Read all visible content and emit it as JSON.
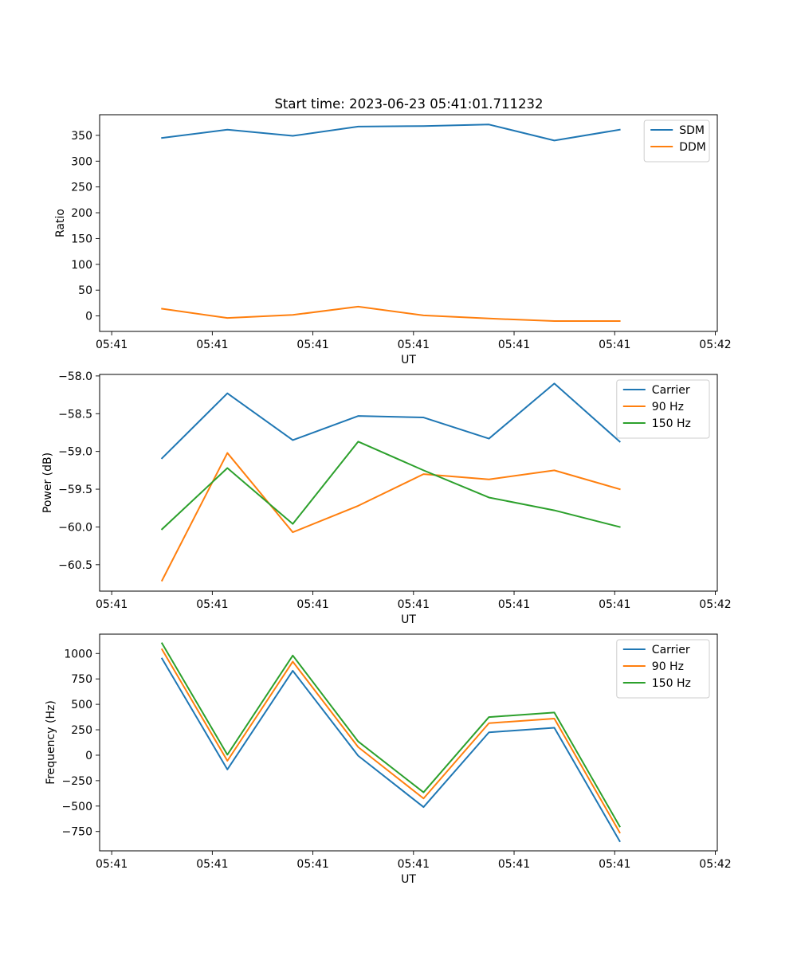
{
  "title": "Start time: 2023-06-23 05:41:01.711232",
  "colors": {
    "c0": "#1f77b4",
    "c1": "#ff7f0e",
    "c2": "#2ca02c"
  },
  "chart_data": [
    {
      "type": "line",
      "title": "Start time: 2023-06-23 05:41:01.711232",
      "xlabel": "UT",
      "ylabel": "Ratio",
      "x_tick_labels": [
        "05:41",
        "05:41",
        "05:41",
        "05:41",
        "05:41",
        "05:41",
        "05:42"
      ],
      "x_tick_values": [
        0,
        1,
        2,
        3,
        4,
        5,
        6
      ],
      "xlim": [
        -0.12,
        6.02
      ],
      "x": [
        0.5,
        1.15,
        1.8,
        2.45,
        3.1,
        3.75,
        4.4,
        5.05
      ],
      "ylim": [
        -30,
        390
      ],
      "y_ticks": [
        0,
        50,
        100,
        150,
        200,
        250,
        300,
        350
      ],
      "legend": "top-right",
      "series": [
        {
          "name": "SDM",
          "color": "#1f77b4",
          "values": [
            345,
            361,
            349,
            367,
            368,
            371,
            340,
            361
          ]
        },
        {
          "name": "DDM",
          "color": "#ff7f0e",
          "values": [
            14,
            -4,
            2,
            18,
            1,
            -5,
            -10,
            -10
          ]
        }
      ]
    },
    {
      "type": "line",
      "xlabel": "UT",
      "ylabel": "Power (dB)",
      "x_tick_labels": [
        "05:41",
        "05:41",
        "05:41",
        "05:41",
        "05:41",
        "05:41",
        "05:42"
      ],
      "x_tick_values": [
        0,
        1,
        2,
        3,
        4,
        5,
        6
      ],
      "xlim": [
        -0.12,
        6.02
      ],
      "x": [
        0.5,
        1.15,
        1.8,
        2.45,
        3.1,
        3.75,
        4.4,
        5.05
      ],
      "ylim": [
        -60.85,
        -57.98
      ],
      "y_ticks": [
        -60.5,
        -60.0,
        -59.5,
        -59.0,
        -58.5,
        -58.0
      ],
      "y_tick_labels": [
        "−60.5",
        "−60.0",
        "−59.5",
        "−59.0",
        "−58.5",
        "−58.0"
      ],
      "legend": "top-right",
      "series": [
        {
          "name": "Carrier",
          "color": "#1f77b4",
          "values": [
            -59.09,
            -58.23,
            -58.85,
            -58.53,
            -58.55,
            -58.83,
            -58.1,
            -58.87
          ]
        },
        {
          "name": "90 Hz",
          "color": "#ff7f0e",
          "values": [
            -60.71,
            -59.02,
            -60.07,
            -59.72,
            -59.3,
            -59.37,
            -59.25,
            -59.5
          ]
        },
        {
          "name": "150 Hz",
          "color": "#2ca02c",
          "values": [
            -60.03,
            -59.22,
            -59.96,
            -58.87,
            -59.25,
            -59.61,
            -59.78,
            -60.0
          ]
        }
      ]
    },
    {
      "type": "line",
      "xlabel": "UT",
      "ylabel": "Frequency (Hz)",
      "x_tick_labels": [
        "05:41",
        "05:41",
        "05:41",
        "05:41",
        "05:41",
        "05:41",
        "05:42"
      ],
      "x_tick_values": [
        0,
        1,
        2,
        3,
        4,
        5,
        6
      ],
      "xlim": [
        -0.12,
        6.02
      ],
      "x": [
        0.5,
        1.15,
        1.8,
        2.45,
        3.1,
        3.75,
        4.4,
        5.05
      ],
      "ylim": [
        -940,
        1190
      ],
      "y_ticks": [
        -750,
        -500,
        -250,
        0,
        250,
        500,
        750,
        1000
      ],
      "y_tick_labels": [
        "−750",
        "−500",
        "−250",
        "0",
        "250",
        "500",
        "750",
        "1000"
      ],
      "legend": "top-right",
      "series": [
        {
          "name": "Carrier",
          "color": "#1f77b4",
          "values": [
            950,
            -140,
            830,
            -5,
            -510,
            225,
            270,
            -845
          ]
        },
        {
          "name": "90 Hz",
          "color": "#ff7f0e",
          "values": [
            1040,
            -55,
            920,
            80,
            -425,
            315,
            360,
            -760
          ]
        },
        {
          "name": "150 Hz",
          "color": "#2ca02c",
          "values": [
            1100,
            5,
            980,
            135,
            -365,
            375,
            420,
            -700
          ]
        }
      ]
    }
  ]
}
